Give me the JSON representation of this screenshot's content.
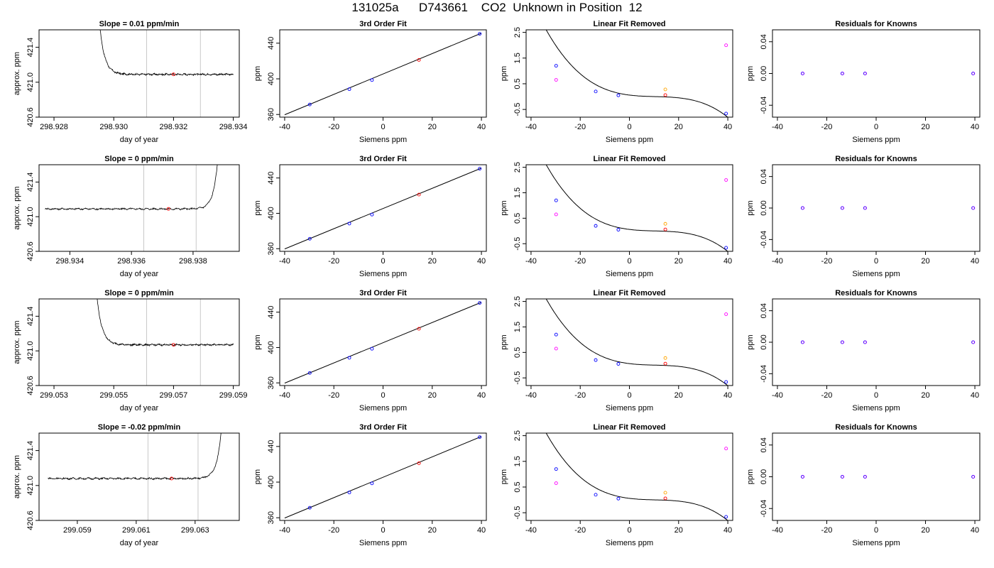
{
  "page": {
    "title": "131025a      D743661    CO2  Unknown in Position  12"
  },
  "panel_titles": {
    "fit": "3rd Order Fit",
    "linear": "Linear Fit Removed",
    "resid": "Residuals for Knowns"
  },
  "colors": {
    "trace": "#000000",
    "window_lines": "#c8c8c8",
    "unknown_point": "#ff0000",
    "standard_point": "#0000ff",
    "alt_point": "#ff00ff",
    "alt_point2": "#ffa500",
    "fit_curve": "#000000"
  },
  "chart_data": [
    {
      "type": "line",
      "title": "Slope =  0.01  ppm/min",
      "xlabel": "day of year",
      "ylabel": "approx. ppm",
      "xlim": [
        298.9275,
        298.9342
      ],
      "ylim": [
        420.6,
        421.6
      ],
      "xticks": [
        "298.928",
        "298.930",
        "298.932",
        "298.934"
      ],
      "xtick_values": [
        298.928,
        298.93,
        298.932,
        298.934
      ],
      "yticks": [
        "420.6",
        "421.0",
        "421.4"
      ],
      "ytick_values": [
        420.6,
        421.0,
        421.4
      ],
      "window_lines_x": [
        298.9311,
        298.9329
      ],
      "trace": {
        "x_start": 298.9293,
        "x_end": 298.934,
        "spike": "start",
        "baseline": 421.09,
        "noise": 0.008
      },
      "marker": {
        "x": 298.932,
        "y": 421.09
      }
    },
    {
      "type": "line",
      "title": "Slope =  0  ppm/min",
      "xlabel": "day of year",
      "ylabel": "approx. ppm",
      "xlim": [
        298.933,
        298.9395
      ],
      "ylim": [
        420.6,
        421.6
      ],
      "xticks": [
        "298.934",
        "298.936",
        "298.938"
      ],
      "xtick_values": [
        298.934,
        298.936,
        298.938
      ],
      "yticks": [
        "420.6",
        "421.0",
        "421.4"
      ],
      "ytick_values": [
        420.6,
        421.0,
        421.4
      ],
      "window_lines_x": [
        298.9364,
        298.9381
      ],
      "trace": {
        "x_start": 298.9332,
        "x_end": 298.939,
        "spike": "end",
        "baseline": 421.09,
        "noise": 0.008
      },
      "marker": {
        "x": 298.9372,
        "y": 421.09
      }
    },
    {
      "type": "line",
      "title": "Slope =  0  ppm/min",
      "xlabel": "day of year",
      "ylabel": "approx. ppm",
      "xlim": [
        299.0525,
        299.0592
      ],
      "ylim": [
        420.6,
        421.6
      ],
      "xticks": [
        "299.053",
        "299.055",
        "299.057",
        "299.059"
      ],
      "xtick_values": [
        299.053,
        299.055,
        299.057,
        299.059
      ],
      "yticks": [
        "420.6",
        "421.0",
        "421.4"
      ],
      "ytick_values": [
        420.6,
        421.0,
        421.4
      ],
      "window_lines_x": [
        299.0561,
        299.0579
      ],
      "trace": {
        "x_start": 299.0542,
        "x_end": 299.059,
        "spike": "start",
        "baseline": 421.07,
        "noise": 0.008
      },
      "marker": {
        "x": 299.057,
        "y": 421.07
      }
    },
    {
      "type": "line",
      "title": "Slope =  -0.02  ppm/min",
      "xlabel": "day of year",
      "ylabel": "approx. ppm",
      "xlim": [
        299.0577,
        299.0645
      ],
      "ylim": [
        420.6,
        421.6
      ],
      "xticks": [
        "299.059",
        "299.061",
        "299.063"
      ],
      "xtick_values": [
        299.059,
        299.061,
        299.063
      ],
      "yticks": [
        "420.6",
        "421.0",
        "421.4"
      ],
      "ytick_values": [
        420.6,
        421.0,
        421.4
      ],
      "window_lines_x": [
        299.0614,
        299.0631
      ],
      "trace": {
        "x_start": 299.058,
        "x_end": 299.0641,
        "spike": "end",
        "baseline": 421.08,
        "noise": 0.008
      },
      "marker": {
        "x": 299.0622,
        "y": 421.08
      }
    },
    {
      "type": "scatter",
      "title": "3rd Order Fit",
      "xlabel": "Siemens ppm",
      "ylabel": "ppm",
      "xlim": [
        -42,
        42
      ],
      "ylim": [
        357,
        455
      ],
      "xticks": [
        "-40",
        "-20",
        "0",
        "20",
        "40"
      ],
      "xtick_values": [
        -40,
        -20,
        0,
        20,
        40
      ],
      "yticks": [
        "360",
        "400",
        "440"
      ],
      "ytick_values": [
        360,
        400,
        440
      ],
      "fit_line": {
        "x": [
          -40,
          40
        ],
        "y": [
          359.7,
          451.2
        ]
      },
      "series": [
        {
          "color": "standard",
          "x": [
            -29.8,
            -13.7,
            -4.5,
            39.3
          ],
          "y": [
            371.2,
            388.4,
            398.6,
            450.5
          ]
        },
        {
          "color": "unknown",
          "x": [
            14.6
          ],
          "y": [
            421.2
          ]
        }
      ]
    },
    {
      "type": "scatter",
      "title": "Linear Fit Removed",
      "xlabel": "Siemens ppm",
      "ylabel": "ppm",
      "xlim": [
        -42,
        42
      ],
      "ylim": [
        -0.8,
        2.6
      ],
      "xticks": [
        "-40",
        "-20",
        "0",
        "20",
        "40"
      ],
      "xtick_values": [
        -40,
        -20,
        0,
        20,
        40
      ],
      "yticks": [
        "-0.5",
        "0.5",
        "1.5",
        "2.5"
      ],
      "ytick_values": [
        -0.5,
        0.5,
        1.5,
        2.5
      ],
      "curve": {
        "a": 0.05,
        "b": -0.035,
        "c": 0.0015,
        "d": 3e-05,
        "x_start": -40,
        "x_end": 40
      },
      "series": [
        {
          "color": "standard",
          "x": [
            -29.8,
            -13.7,
            -4.5,
            39.3
          ],
          "y": [
            1.2,
            0.2,
            0.05,
            -0.66
          ]
        },
        {
          "color": "unknown",
          "x": [
            14.6
          ],
          "y": [
            0.06
          ]
        },
        {
          "color": "alt",
          "x": [
            -29.8,
            39.3
          ],
          "y": [
            0.65,
            2.0
          ]
        },
        {
          "color": "alt2",
          "x": [
            14.6
          ],
          "y": [
            0.28
          ]
        }
      ]
    },
    {
      "type": "scatter",
      "title": "Residuals for Knowns",
      "xlabel": "Siemens ppm",
      "ylabel": "ppm",
      "xlim": [
        -42,
        42
      ],
      "ylim": [
        -0.055,
        0.055
      ],
      "xticks": [
        "-40",
        "-20",
        "0",
        "20",
        "40"
      ],
      "xtick_values": [
        -40,
        -20,
        0,
        20,
        40
      ],
      "yticks": [
        "-0.04",
        "0.00",
        "0.04"
      ],
      "ytick_values": [
        -0.04,
        0.0,
        0.04
      ],
      "series": [
        {
          "color": "standard",
          "x": [
            -29.8,
            -13.7,
            -4.5,
            39.3
          ],
          "y": [
            0,
            0,
            0,
            0
          ]
        }
      ]
    }
  ]
}
